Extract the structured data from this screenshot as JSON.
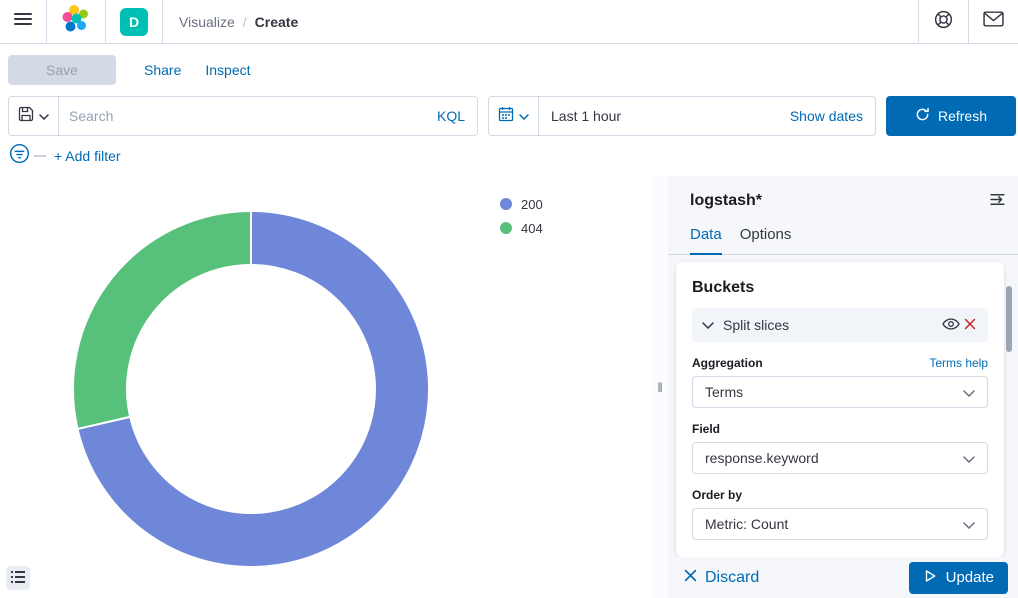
{
  "header": {
    "breadcrumb": {
      "section": "Visualize",
      "separator": "/",
      "current": "Create"
    },
    "space_badge": "D"
  },
  "actionbar": {
    "save": "Save",
    "share": "Share",
    "inspect": "Inspect"
  },
  "querybar": {
    "search_placeholder": "Search",
    "kql": "KQL",
    "time_range": "Last 1 hour",
    "show_dates": "Show dates",
    "refresh": "Refresh"
  },
  "filterbar": {
    "add_filter": "+ Add filter"
  },
  "chart_data": {
    "type": "pie",
    "subtype": "donut",
    "categories": [
      "200",
      "404"
    ],
    "values": [
      71.4,
      28.6
    ],
    "unit": "percent-of-total (estimated from arc angles, no numeric labels shown)",
    "colors": [
      "#6f87d8",
      "#57c17b"
    ],
    "start_angle_deg": 0,
    "direction": "clockwise",
    "inner_radius_ratio": 0.7,
    "legend_position": "top-right",
    "title": ""
  },
  "sidebar": {
    "index_pattern": "logstash*",
    "tabs": [
      {
        "label": "Data"
      },
      {
        "label": "Options"
      }
    ],
    "active_tab": "Data",
    "buckets": {
      "heading": "Buckets",
      "accordion": "Split slices",
      "fields": [
        {
          "label": "Aggregation",
          "help": "Terms help",
          "value": "Terms"
        },
        {
          "label": "Field",
          "value": "response.keyword"
        },
        {
          "label": "Order by",
          "value": "Metric: Count"
        }
      ]
    },
    "footer": {
      "discard": "Discard",
      "update": "Update"
    }
  },
  "colors": {
    "accent": "#006bb4",
    "danger": "#bd271e",
    "space_badge": "#00bfb3"
  },
  "icons": {
    "resize_handle": "‖"
  }
}
